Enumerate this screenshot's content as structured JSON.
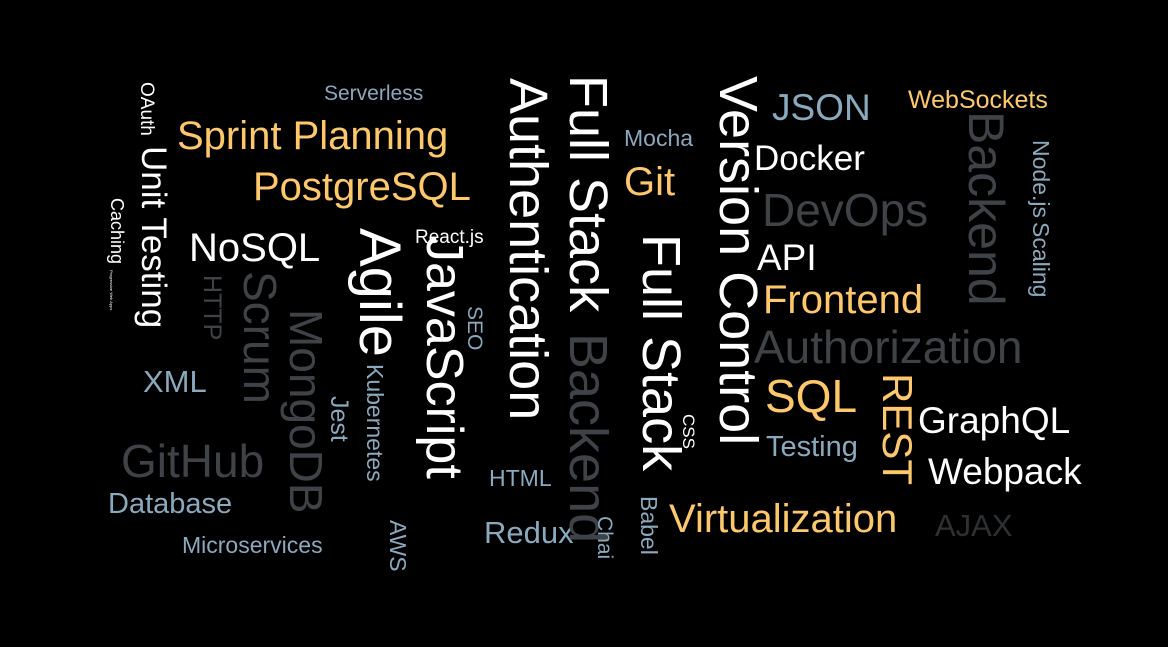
{
  "palette": {
    "white": "#ffffff",
    "yellow": "#fdc86b",
    "blue": "#8aa9bd",
    "dim": "#3f4347",
    "dimmer": "#2e3134"
  },
  "words": [
    {
      "id": "w0",
      "text": "Serverless",
      "color": "blue"
    },
    {
      "id": "w1",
      "text": "Sprint Planning",
      "color": "yellow"
    },
    {
      "id": "w2",
      "text": "PostgreSQL",
      "color": "yellow"
    },
    {
      "id": "w3",
      "text": "NoSQL",
      "color": "white"
    },
    {
      "id": "w4",
      "text": "XML",
      "color": "blue"
    },
    {
      "id": "w5",
      "text": "GitHub",
      "color": "dim"
    },
    {
      "id": "w6",
      "text": "Database",
      "color": "blue"
    },
    {
      "id": "w7",
      "text": "Microservices",
      "color": "blue"
    },
    {
      "id": "w8",
      "text": "React.js",
      "color": "white"
    },
    {
      "id": "w9",
      "text": "Mocha",
      "color": "blue"
    },
    {
      "id": "w10",
      "text": "Git",
      "color": "yellow"
    },
    {
      "id": "w11",
      "text": "JSON",
      "color": "blue"
    },
    {
      "id": "w12",
      "text": "Docker",
      "color": "white"
    },
    {
      "id": "w13",
      "text": "DevOps",
      "color": "dim"
    },
    {
      "id": "w14",
      "text": "API",
      "color": "white"
    },
    {
      "id": "w15",
      "text": "Frontend",
      "color": "yellow"
    },
    {
      "id": "w16",
      "text": "Authorization",
      "color": "dim"
    },
    {
      "id": "w17",
      "text": "SQL",
      "color": "yellow"
    },
    {
      "id": "w18",
      "text": "Testing",
      "color": "blue"
    },
    {
      "id": "w19",
      "text": "GraphQL",
      "color": "white"
    },
    {
      "id": "w20",
      "text": "Webpack",
      "color": "white"
    },
    {
      "id": "w21",
      "text": "Virtualization",
      "color": "yellow"
    },
    {
      "id": "w22",
      "text": "AJAX",
      "color": "dimmer"
    },
    {
      "id": "w23",
      "text": "WebSockets",
      "color": "yellow"
    },
    {
      "id": "w24",
      "text": "HTML",
      "color": "blue"
    },
    {
      "id": "w25",
      "text": "Redux",
      "color": "blue"
    },
    {
      "id": "w26",
      "text": "OAuth",
      "color": "white"
    },
    {
      "id": "w27",
      "text": "Unit Testing",
      "color": "white"
    },
    {
      "id": "w28",
      "text": "Caching",
      "color": "white"
    },
    {
      "id": "w29",
      "text": "Progressive Web Apps",
      "color": "white"
    },
    {
      "id": "w30",
      "text": "HTTP",
      "color": "dim"
    },
    {
      "id": "w31",
      "text": "Scrum",
      "color": "dim"
    },
    {
      "id": "w32",
      "text": "MongoDB",
      "color": "dim"
    },
    {
      "id": "w33",
      "text": "Agile",
      "color": "white"
    },
    {
      "id": "w34",
      "text": "Kubernetes",
      "color": "blue"
    },
    {
      "id": "w35",
      "text": "Jest",
      "color": "blue"
    },
    {
      "id": "w36",
      "text": "AWS",
      "color": "blue"
    },
    {
      "id": "w37",
      "text": "JavaScript",
      "color": "white"
    },
    {
      "id": "w38",
      "text": "SEO",
      "color": "blue"
    },
    {
      "id": "w39",
      "text": "Authentication",
      "color": "white"
    },
    {
      "id": "w40",
      "text": "Full Stack",
      "color": "white"
    },
    {
      "id": "w41",
      "text": "Backend",
      "color": "dim"
    },
    {
      "id": "w42",
      "text": "Full Stack",
      "color": "white"
    },
    {
      "id": "w43",
      "text": "Chai",
      "color": "blue"
    },
    {
      "id": "w44",
      "text": "Babel",
      "color": "blue"
    },
    {
      "id": "w45",
      "text": "CSS",
      "color": "white"
    },
    {
      "id": "w46",
      "text": "Version Control",
      "color": "white"
    },
    {
      "id": "w47",
      "text": "REST",
      "color": "yellow"
    },
    {
      "id": "w48",
      "text": "Backend",
      "color": "dim"
    },
    {
      "id": "w49",
      "text": "Node.js",
      "color": "blue"
    },
    {
      "id": "w50",
      "text": "Scaling",
      "color": "blue"
    }
  ]
}
